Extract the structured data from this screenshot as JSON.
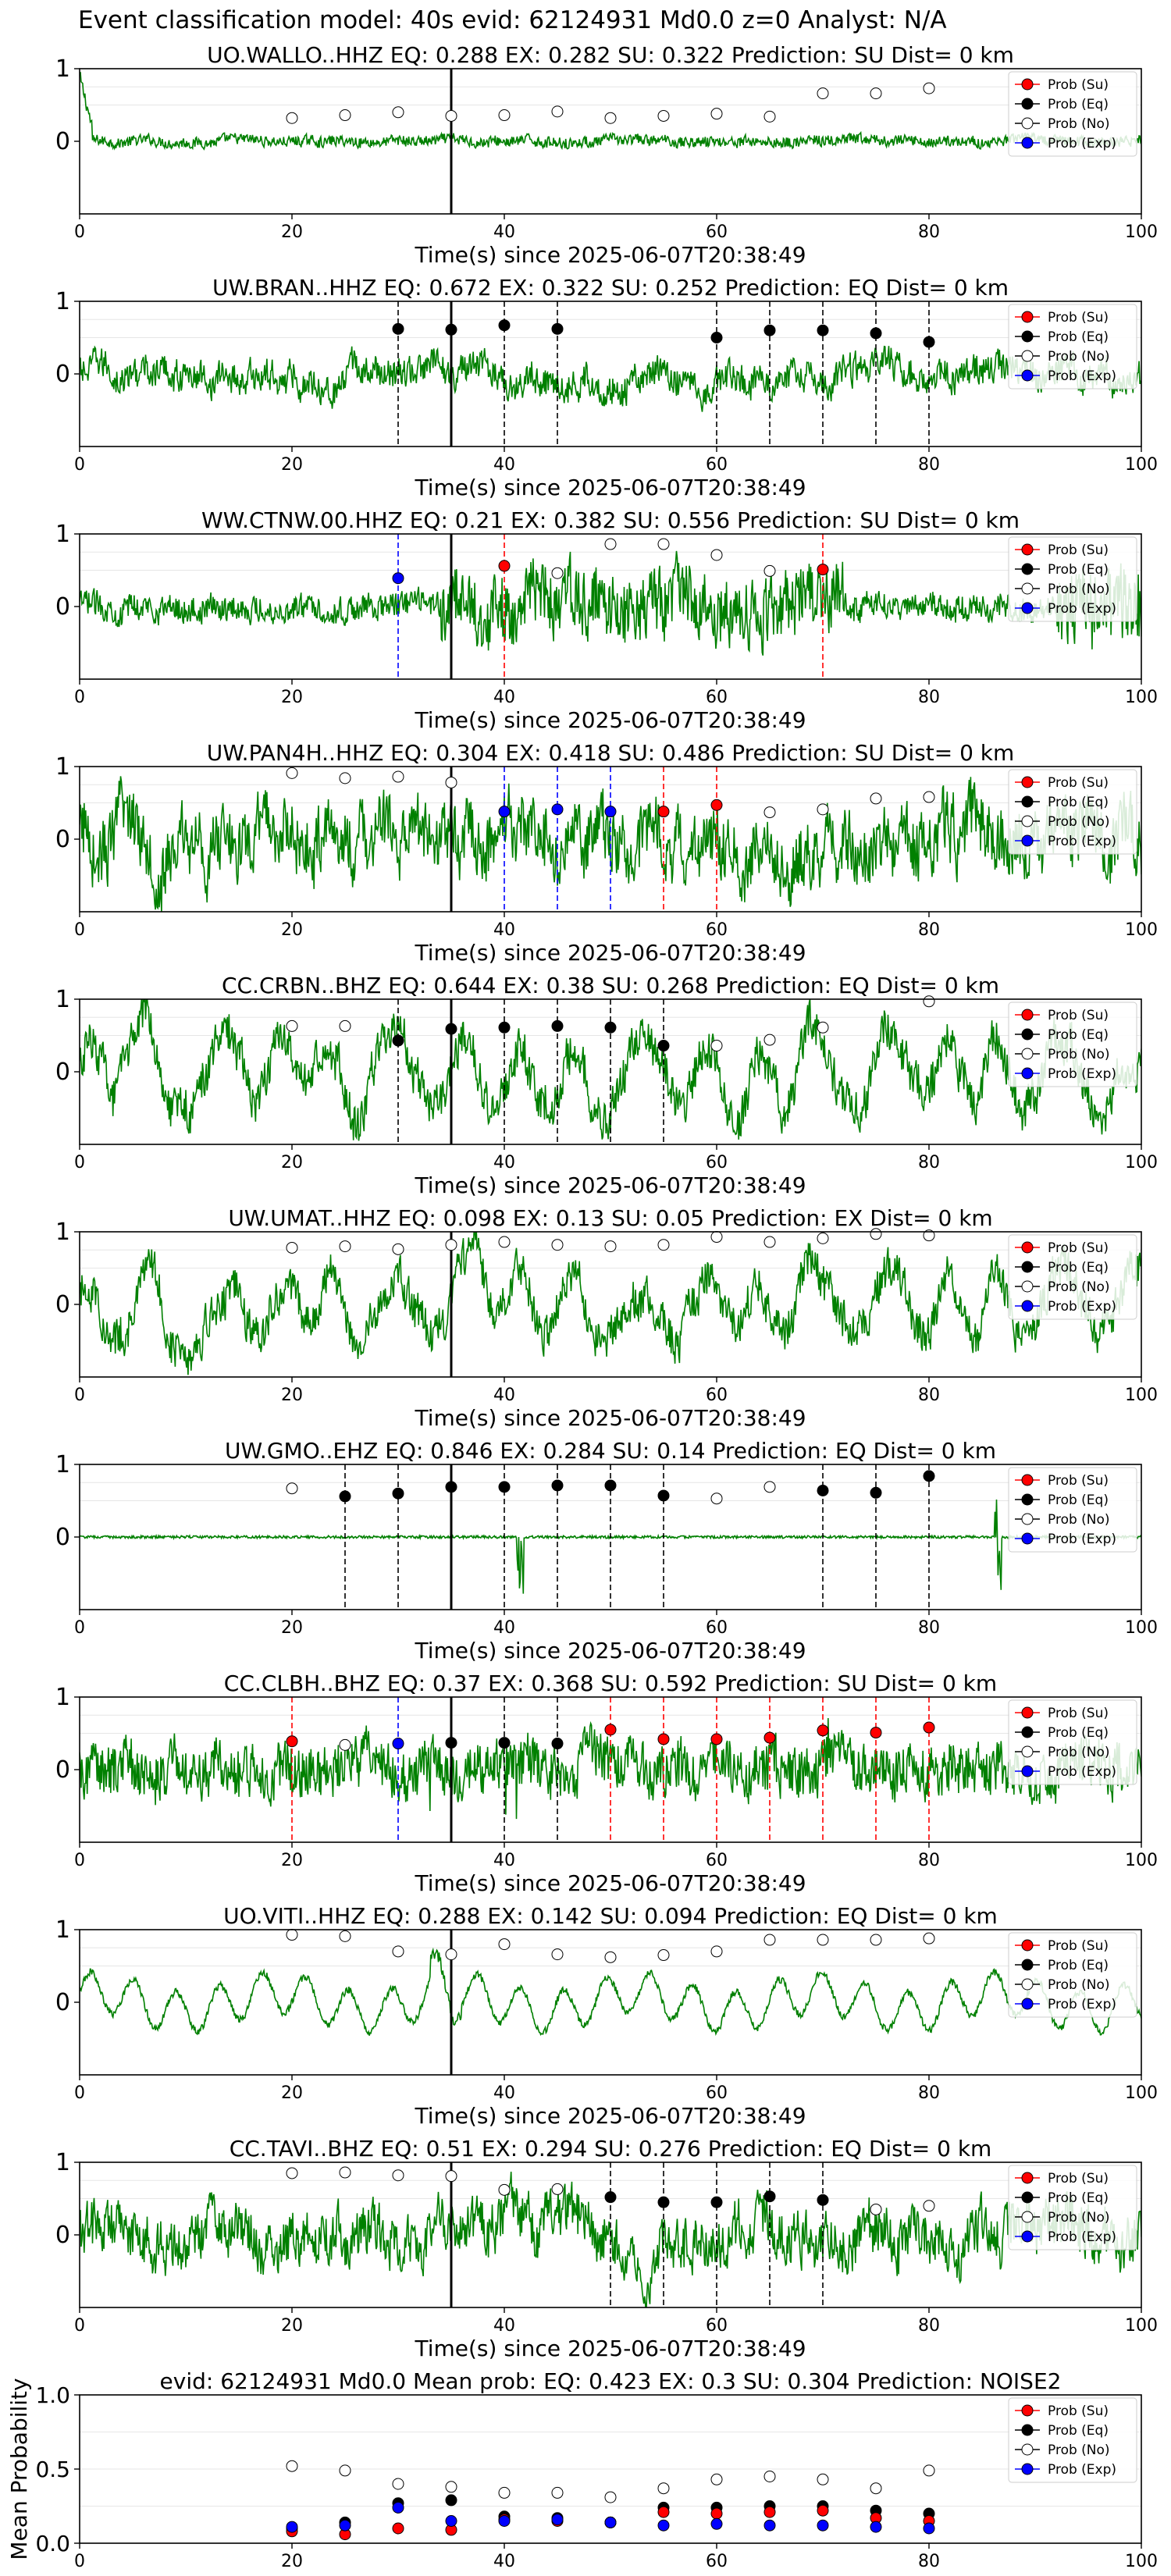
{
  "figure": {
    "title": "Event classification model: 40s evid: 62124931 Md0.0 z=0 Analyst: N/A"
  },
  "legend_items": [
    {
      "label": "Prob (Su)",
      "fill": "#ff0000"
    },
    {
      "label": "Prob (Eq)",
      "fill": "#000000"
    },
    {
      "label": "Prob (No)",
      "fill": "#ffffff"
    },
    {
      "label": "Prob (Exp)",
      "fill": "#0000ff"
    }
  ],
  "colors": {
    "trace": "#008000",
    "su": "#ff0000",
    "eq": "#000000",
    "exp": "#0000ff",
    "pick_line": "#000000"
  },
  "chart_data": [
    {
      "type": "line",
      "title": "UO.WALLO..HHZ   EQ: 0.288  EX: 0.282  SU: 0.322   Prediction: SU    Dist= 0 km",
      "xlabel": "Time(s) since 2025-06-07T20:38:49",
      "ylabel": "",
      "xlim": [
        0,
        100
      ],
      "ylim": [
        -1,
        1
      ],
      "xticks": [
        0,
        20,
        40,
        60,
        80,
        100
      ],
      "yticks": [
        0,
        1
      ],
      "pick_time": 35,
      "trace_amplitude": 0.12,
      "trace_character": "spike-start",
      "points": [
        {
          "x": 20,
          "y": 0.32,
          "cls": "No"
        },
        {
          "x": 25,
          "y": 0.36,
          "cls": "No"
        },
        {
          "x": 30,
          "y": 0.4,
          "cls": "No"
        },
        {
          "x": 35,
          "y": 0.35,
          "cls": "No"
        },
        {
          "x": 40,
          "y": 0.36,
          "cls": "No"
        },
        {
          "x": 45,
          "y": 0.41,
          "cls": "No"
        },
        {
          "x": 50,
          "y": 0.32,
          "cls": "No"
        },
        {
          "x": 55,
          "y": 0.35,
          "cls": "No"
        },
        {
          "x": 60,
          "y": 0.38,
          "cls": "No"
        },
        {
          "x": 65,
          "y": 0.34,
          "cls": "No"
        },
        {
          "x": 70,
          "y": 0.66,
          "cls": "No"
        },
        {
          "x": 75,
          "y": 0.66,
          "cls": "No"
        },
        {
          "x": 80,
          "y": 0.73,
          "cls": "No"
        }
      ]
    },
    {
      "type": "line",
      "title": "UW.BRAN..HHZ   EQ: 0.672  EX: 0.322  SU: 0.252   Prediction: EQ    Dist= 0 km",
      "xlabel": "Time(s) since 2025-06-07T20:38:49",
      "ylabel": "",
      "xlim": [
        0,
        100
      ],
      "ylim": [
        -1,
        1
      ],
      "xticks": [
        0,
        20,
        40,
        60,
        80,
        100
      ],
      "yticks": [
        0,
        1
      ],
      "pick_time": 35,
      "trace_amplitude": 0.3,
      "trace_character": "noise",
      "points": [
        {
          "x": 30,
          "y": 0.62,
          "cls": "Eq"
        },
        {
          "x": 35,
          "y": 0.61,
          "cls": "Eq"
        },
        {
          "x": 40,
          "y": 0.67,
          "cls": "Eq"
        },
        {
          "x": 45,
          "y": 0.62,
          "cls": "Eq"
        },
        {
          "x": 60,
          "y": 0.5,
          "cls": "Eq"
        },
        {
          "x": 65,
          "y": 0.6,
          "cls": "Eq"
        },
        {
          "x": 70,
          "y": 0.6,
          "cls": "Eq"
        },
        {
          "x": 75,
          "y": 0.56,
          "cls": "Eq"
        },
        {
          "x": 80,
          "y": 0.44,
          "cls": "Eq"
        }
      ]
    },
    {
      "type": "line",
      "title": "WW.CTNW.00.HHZ   EQ: 0.21  EX: 0.382  SU: 0.556   Prediction: SU    Dist= 0 km",
      "xlabel": "Time(s) since 2025-06-07T20:38:49",
      "ylabel": "",
      "xlim": [
        0,
        100
      ],
      "ylim": [
        -1,
        1
      ],
      "xticks": [
        0,
        20,
        40,
        60,
        80,
        100
      ],
      "yticks": [
        0,
        1
      ],
      "pick_time": 35,
      "trace_amplitude": 0.35,
      "trace_character": "event",
      "points": [
        {
          "x": 30,
          "y": 0.39,
          "cls": "Exp"
        },
        {
          "x": 40,
          "y": 0.56,
          "cls": "Su"
        },
        {
          "x": 45,
          "y": 0.46,
          "cls": "No"
        },
        {
          "x": 50,
          "y": 0.86,
          "cls": "No"
        },
        {
          "x": 55,
          "y": 0.86,
          "cls": "No"
        },
        {
          "x": 60,
          "y": 0.71,
          "cls": "No"
        },
        {
          "x": 65,
          "y": 0.49,
          "cls": "No"
        },
        {
          "x": 70,
          "y": 0.51,
          "cls": "Su"
        }
      ]
    },
    {
      "type": "line",
      "title": "UW.PAN4H..HHZ   EQ: 0.304  EX: 0.418  SU: 0.486   Prediction: SU    Dist= 0 km",
      "xlabel": "Time(s) since 2025-06-07T20:38:49",
      "ylabel": "",
      "xlim": [
        0,
        100
      ],
      "ylim": [
        -1,
        1
      ],
      "xticks": [
        0,
        20,
        40,
        60,
        80,
        100
      ],
      "yticks": [
        0,
        1
      ],
      "pick_time": 35,
      "trace_amplitude": 0.65,
      "trace_character": "noise",
      "points": [
        {
          "x": 20,
          "y": 0.91,
          "cls": "No"
        },
        {
          "x": 25,
          "y": 0.84,
          "cls": "No"
        },
        {
          "x": 30,
          "y": 0.86,
          "cls": "No"
        },
        {
          "x": 35,
          "y": 0.78,
          "cls": "No"
        },
        {
          "x": 40,
          "y": 0.38,
          "cls": "Exp"
        },
        {
          "x": 45,
          "y": 0.41,
          "cls": "Exp"
        },
        {
          "x": 50,
          "y": 0.38,
          "cls": "Exp"
        },
        {
          "x": 55,
          "y": 0.38,
          "cls": "Su"
        },
        {
          "x": 60,
          "y": 0.47,
          "cls": "Su"
        },
        {
          "x": 65,
          "y": 0.37,
          "cls": "No"
        },
        {
          "x": 70,
          "y": 0.41,
          "cls": "No"
        },
        {
          "x": 75,
          "y": 0.56,
          "cls": "No"
        },
        {
          "x": 80,
          "y": 0.58,
          "cls": "No"
        }
      ]
    },
    {
      "type": "line",
      "title": "CC.CRBN..BHZ   EQ: 0.644  EX: 0.38  SU: 0.268   Prediction: EQ    Dist= 0 km",
      "xlabel": "Time(s) since 2025-06-07T20:38:49",
      "ylabel": "",
      "xlim": [
        0,
        100
      ],
      "ylim": [
        -1,
        1
      ],
      "xticks": [
        0,
        20,
        40,
        60,
        80,
        100
      ],
      "yticks": [
        0,
        1
      ],
      "pick_time": 35,
      "trace_amplitude": 0.7,
      "trace_character": "wavy",
      "points": [
        {
          "x": 20,
          "y": 0.63,
          "cls": "No"
        },
        {
          "x": 25,
          "y": 0.63,
          "cls": "No"
        },
        {
          "x": 30,
          "y": 0.43,
          "cls": "Eq"
        },
        {
          "x": 35,
          "y": 0.59,
          "cls": "Eq"
        },
        {
          "x": 40,
          "y": 0.61,
          "cls": "Eq"
        },
        {
          "x": 45,
          "y": 0.63,
          "cls": "Eq"
        },
        {
          "x": 50,
          "y": 0.61,
          "cls": "Eq"
        },
        {
          "x": 55,
          "y": 0.36,
          "cls": "Eq"
        },
        {
          "x": 60,
          "y": 0.36,
          "cls": "No"
        },
        {
          "x": 65,
          "y": 0.44,
          "cls": "No"
        },
        {
          "x": 70,
          "y": 0.61,
          "cls": "No"
        },
        {
          "x": 80,
          "y": 0.97,
          "cls": "No"
        }
      ]
    },
    {
      "type": "line",
      "title": "UW.UMAT..HHZ   EQ: 0.098  EX: 0.13  SU: 0.05   Prediction: EX    Dist= 0 km",
      "xlabel": "Time(s) since 2025-06-07T20:38:49",
      "ylabel": "",
      "xlim": [
        0,
        100
      ],
      "ylim": [
        -1,
        1
      ],
      "xticks": [
        0,
        20,
        40,
        60,
        80,
        100
      ],
      "yticks": [
        0,
        1
      ],
      "pick_time": 35,
      "trace_amplitude": 0.65,
      "trace_character": "wavy",
      "points": [
        {
          "x": 20,
          "y": 0.78,
          "cls": "No"
        },
        {
          "x": 25,
          "y": 0.8,
          "cls": "No"
        },
        {
          "x": 30,
          "y": 0.76,
          "cls": "No"
        },
        {
          "x": 35,
          "y": 0.82,
          "cls": "No"
        },
        {
          "x": 40,
          "y": 0.86,
          "cls": "No"
        },
        {
          "x": 45,
          "y": 0.82,
          "cls": "No"
        },
        {
          "x": 50,
          "y": 0.8,
          "cls": "No"
        },
        {
          "x": 55,
          "y": 0.82,
          "cls": "No"
        },
        {
          "x": 60,
          "y": 0.93,
          "cls": "No"
        },
        {
          "x": 65,
          "y": 0.86,
          "cls": "No"
        },
        {
          "x": 70,
          "y": 0.91,
          "cls": "No"
        },
        {
          "x": 75,
          "y": 0.97,
          "cls": "No"
        },
        {
          "x": 80,
          "y": 0.95,
          "cls": "No"
        }
      ]
    },
    {
      "type": "line",
      "title": "UW.GMO..EHZ   EQ: 0.846  EX: 0.284  SU: 0.14   Prediction: EQ    Dist= 0 km",
      "xlabel": "Time(s) since 2025-06-07T20:38:49",
      "ylabel": "",
      "xlim": [
        0,
        100
      ],
      "ylim": [
        -1,
        1
      ],
      "xticks": [
        0,
        20,
        40,
        60,
        80,
        100
      ],
      "yticks": [
        0,
        1
      ],
      "pick_time": 35,
      "trace_amplitude": 0.03,
      "trace_character": "quiet",
      "points": [
        {
          "x": 20,
          "y": 0.67,
          "cls": "No"
        },
        {
          "x": 25,
          "y": 0.56,
          "cls": "Eq"
        },
        {
          "x": 30,
          "y": 0.6,
          "cls": "Eq"
        },
        {
          "x": 35,
          "y": 0.69,
          "cls": "Eq"
        },
        {
          "x": 40,
          "y": 0.69,
          "cls": "Eq"
        },
        {
          "x": 45,
          "y": 0.71,
          "cls": "Eq"
        },
        {
          "x": 50,
          "y": 0.71,
          "cls": "Eq"
        },
        {
          "x": 55,
          "y": 0.57,
          "cls": "Eq"
        },
        {
          "x": 60,
          "y": 0.53,
          "cls": "No"
        },
        {
          "x": 65,
          "y": 0.69,
          "cls": "No"
        },
        {
          "x": 70,
          "y": 0.64,
          "cls": "Eq"
        },
        {
          "x": 75,
          "y": 0.61,
          "cls": "Eq"
        },
        {
          "x": 80,
          "y": 0.84,
          "cls": "Eq"
        }
      ]
    },
    {
      "type": "line",
      "title": "CC.CLBH..BHZ   EQ: 0.37  EX: 0.368  SU: 0.592   Prediction: SU    Dist= 0 km",
      "xlabel": "Time(s) since 2025-06-07T20:38:49",
      "ylabel": "",
      "xlim": [
        0,
        100
      ],
      "ylim": [
        -1,
        1
      ],
      "xticks": [
        0,
        20,
        40,
        60,
        80,
        100
      ],
      "yticks": [
        0,
        1
      ],
      "pick_time": 35,
      "trace_amplitude": 0.4,
      "trace_character": "spiky",
      "points": [
        {
          "x": 20,
          "y": 0.39,
          "cls": "Su"
        },
        {
          "x": 25,
          "y": 0.34,
          "cls": "No"
        },
        {
          "x": 30,
          "y": 0.36,
          "cls": "Exp"
        },
        {
          "x": 35,
          "y": 0.37,
          "cls": "Eq"
        },
        {
          "x": 40,
          "y": 0.37,
          "cls": "Eq"
        },
        {
          "x": 45,
          "y": 0.36,
          "cls": "Eq"
        },
        {
          "x": 50,
          "y": 0.55,
          "cls": "Su"
        },
        {
          "x": 55,
          "y": 0.42,
          "cls": "Su"
        },
        {
          "x": 60,
          "y": 0.42,
          "cls": "Su"
        },
        {
          "x": 65,
          "y": 0.44,
          "cls": "Su"
        },
        {
          "x": 70,
          "y": 0.54,
          "cls": "Su"
        },
        {
          "x": 75,
          "y": 0.51,
          "cls": "Su"
        },
        {
          "x": 80,
          "y": 0.58,
          "cls": "Su"
        }
      ]
    },
    {
      "type": "line",
      "title": "UO.VITI..HHZ   EQ: 0.288  EX: 0.142  SU: 0.094   Prediction: EQ    Dist= 0 km",
      "xlabel": "Time(s) since 2025-06-07T20:38:49",
      "ylabel": "",
      "xlim": [
        0,
        100
      ],
      "ylim": [
        -1,
        1
      ],
      "xticks": [
        0,
        20,
        40,
        60,
        80,
        100
      ],
      "yticks": [
        0,
        1
      ],
      "pick_time": 35,
      "trace_amplitude": 0.35,
      "trace_character": "sine",
      "points": [
        {
          "x": 20,
          "y": 0.93,
          "cls": "No"
        },
        {
          "x": 25,
          "y": 0.91,
          "cls": "No"
        },
        {
          "x": 30,
          "y": 0.7,
          "cls": "No"
        },
        {
          "x": 35,
          "y": 0.66,
          "cls": "No"
        },
        {
          "x": 40,
          "y": 0.8,
          "cls": "No"
        },
        {
          "x": 45,
          "y": 0.66,
          "cls": "No"
        },
        {
          "x": 50,
          "y": 0.62,
          "cls": "No"
        },
        {
          "x": 55,
          "y": 0.65,
          "cls": "No"
        },
        {
          "x": 60,
          "y": 0.7,
          "cls": "No"
        },
        {
          "x": 65,
          "y": 0.86,
          "cls": "No"
        },
        {
          "x": 70,
          "y": 0.86,
          "cls": "No"
        },
        {
          "x": 75,
          "y": 0.86,
          "cls": "No"
        },
        {
          "x": 80,
          "y": 0.88,
          "cls": "No"
        }
      ]
    },
    {
      "type": "line",
      "title": "CC.TAVI..BHZ   EQ: 0.51  EX: 0.294  SU: 0.276   Prediction: EQ    Dist= 0 km",
      "xlabel": "Time(s) since 2025-06-07T20:38:49",
      "ylabel": "",
      "xlim": [
        0,
        100
      ],
      "ylim": [
        -1,
        1
      ],
      "xticks": [
        0,
        20,
        40,
        60,
        80,
        100
      ],
      "yticks": [
        0,
        1
      ],
      "pick_time": 35,
      "trace_amplitude": 0.5,
      "trace_character": "noise",
      "points": [
        {
          "x": 20,
          "y": 0.85,
          "cls": "No"
        },
        {
          "x": 25,
          "y": 0.86,
          "cls": "No"
        },
        {
          "x": 30,
          "y": 0.82,
          "cls": "No"
        },
        {
          "x": 35,
          "y": 0.81,
          "cls": "No"
        },
        {
          "x": 40,
          "y": 0.62,
          "cls": "No"
        },
        {
          "x": 45,
          "y": 0.63,
          "cls": "No"
        },
        {
          "x": 50,
          "y": 0.52,
          "cls": "Eq"
        },
        {
          "x": 55,
          "y": 0.45,
          "cls": "Eq"
        },
        {
          "x": 60,
          "y": 0.45,
          "cls": "Eq"
        },
        {
          "x": 65,
          "y": 0.53,
          "cls": "Eq"
        },
        {
          "x": 70,
          "y": 0.48,
          "cls": "Eq"
        },
        {
          "x": 75,
          "y": 0.35,
          "cls": "No"
        },
        {
          "x": 80,
          "y": 0.4,
          "cls": "No"
        }
      ]
    },
    {
      "type": "scatter",
      "title": "evid: 62124931  Md0.0   Mean prob:   EQ: 0.423  EX: 0.3  SU: 0.304   Prediction: NOISE2",
      "xlabel": "",
      "ylabel": "Mean Probability",
      "xlim": [
        0,
        100
      ],
      "ylim": [
        0,
        1
      ],
      "xticks": [
        0,
        20,
        40,
        60,
        80,
        100
      ],
      "yticks": [
        0.0,
        0.5,
        1.0
      ],
      "ytick_labels": [
        "0.0",
        "0.5",
        "1.0"
      ],
      "x": [
        20,
        25,
        30,
        35,
        40,
        45,
        50,
        55,
        60,
        65,
        70,
        75,
        80
      ],
      "series": [
        {
          "name": "Prob (No)",
          "cls": "No",
          "values": [
            0.52,
            0.49,
            0.4,
            0.38,
            0.34,
            0.34,
            0.31,
            0.37,
            0.43,
            0.45,
            0.43,
            0.37,
            0.49
          ]
        },
        {
          "name": "Prob (Eq)",
          "cls": "Eq",
          "values": [
            0.1,
            0.14,
            0.27,
            0.29,
            0.18,
            0.17,
            0.14,
            0.24,
            0.24,
            0.25,
            0.25,
            0.22,
            0.2
          ]
        },
        {
          "name": "Prob (Su)",
          "cls": "Su",
          "values": [
            0.08,
            0.06,
            0.1,
            0.09,
            0.16,
            0.15,
            0.14,
            0.21,
            0.2,
            0.21,
            0.22,
            0.17,
            0.15
          ]
        },
        {
          "name": "Prob (Exp)",
          "cls": "Exp",
          "values": [
            0.11,
            0.12,
            0.24,
            0.15,
            0.15,
            0.16,
            0.14,
            0.12,
            0.13,
            0.12,
            0.12,
            0.11,
            0.1
          ]
        }
      ]
    }
  ]
}
